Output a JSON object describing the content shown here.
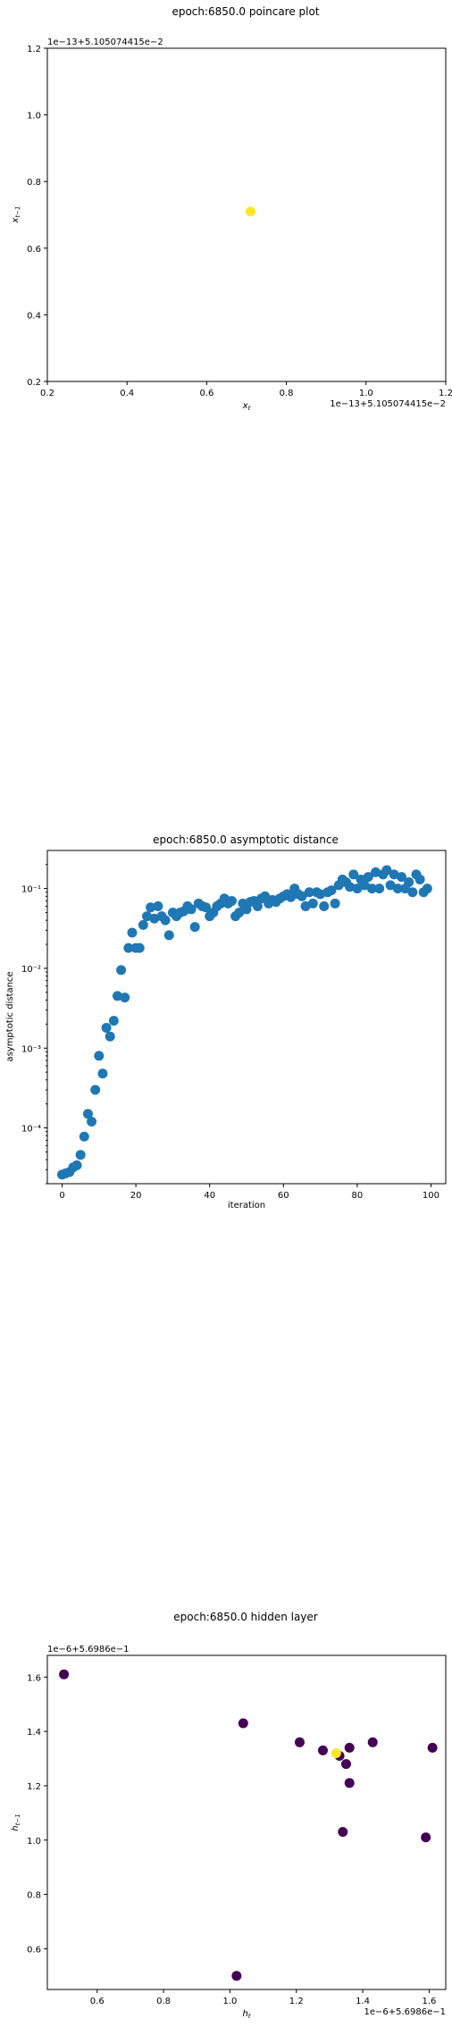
{
  "chart_data": [
    {
      "type": "scatter",
      "title": "epoch:6850.0 poincare plot",
      "xlabel": "x_t",
      "ylabel": "x_{t-1}",
      "x_offset_text": "1e−13+5.105074415e−2",
      "y_offset_text": "1e−13+5.105074415e−2",
      "xlim": [
        0.2,
        1.2
      ],
      "ylim": [
        0.2,
        1.2
      ],
      "x_ticks": [
        "0.2",
        "0.4",
        "0.6",
        "0.8",
        "1.0",
        "1.2"
      ],
      "y_ticks": [
        "0.2",
        "0.4",
        "0.6",
        "0.8",
        "1.0",
        "1.2"
      ],
      "points": [
        {
          "x": 0.71,
          "y": 0.71,
          "color": "#fde725"
        }
      ],
      "grid": false
    },
    {
      "type": "scatter",
      "title": "epoch:6850.0 asymptotic distance",
      "xlabel": "iteration",
      "ylabel": "asymptotic distance",
      "yscale": "log",
      "xlim": [
        -4,
        104
      ],
      "ylim": [
        2e-05,
        0.3
      ],
      "x_ticks": [
        "0",
        "20",
        "40",
        "60",
        "80",
        "100"
      ],
      "y_ticks": [
        "10⁻⁴",
        "10⁻³",
        "10⁻²",
        "10⁻¹"
      ],
      "color": "#1f77b4",
      "x": [
        0,
        1,
        2,
        3,
        4,
        5,
        6,
        7,
        8,
        9,
        10,
        11,
        12,
        13,
        14,
        15,
        16,
        17,
        18,
        19,
        20,
        21,
        22,
        23,
        24,
        25,
        26,
        27,
        28,
        29,
        30,
        31,
        32,
        33,
        34,
        35,
        36,
        37,
        38,
        39,
        40,
        41,
        42,
        43,
        44,
        45,
        46,
        47,
        48,
        49,
        50,
        51,
        52,
        53,
        54,
        55,
        56,
        57,
        58,
        59,
        60,
        61,
        62,
        63,
        64,
        65,
        66,
        67,
        68,
        69,
        70,
        71,
        72,
        73,
        74,
        75,
        76,
        77,
        78,
        79,
        80,
        81,
        82,
        83,
        84,
        85,
        86,
        87,
        88,
        89,
        90,
        91,
        92,
        93,
        94,
        95,
        96,
        97,
        98,
        99
      ],
      "y": [
        2.6e-05,
        2.7e-05,
        2.8e-05,
        3.2e-05,
        3.4e-05,
        4.6e-05,
        7.8e-05,
        0.00015,
        0.00012,
        0.0003,
        0.0008,
        0.00048,
        0.0018,
        0.0014,
        0.0022,
        0.0045,
        0.0095,
        0.0043,
        0.018,
        0.028,
        0.018,
        0.018,
        0.035,
        0.045,
        0.058,
        0.042,
        0.06,
        0.045,
        0.04,
        0.026,
        0.05,
        0.045,
        0.05,
        0.052,
        0.06,
        0.055,
        0.033,
        0.065,
        0.06,
        0.058,
        0.045,
        0.05,
        0.06,
        0.065,
        0.075,
        0.065,
        0.07,
        0.045,
        0.05,
        0.065,
        0.055,
        0.068,
        0.07,
        0.06,
        0.075,
        0.08,
        0.065,
        0.072,
        0.068,
        0.075,
        0.08,
        0.085,
        0.078,
        0.1,
        0.085,
        0.08,
        0.06,
        0.09,
        0.065,
        0.09,
        0.085,
        0.06,
        0.09,
        0.095,
        0.065,
        0.11,
        0.13,
        0.12,
        0.105,
        0.15,
        0.1,
        0.13,
        0.11,
        0.14,
        0.1,
        0.16,
        0.1,
        0.15,
        0.17,
        0.11,
        0.15,
        0.1,
        0.14,
        0.1,
        0.12,
        0.09,
        0.15,
        0.13,
        0.09,
        0.1
      ],
      "grid": false
    },
    {
      "type": "scatter",
      "title": "epoch:6850.0 hidden layer",
      "xlabel": "h_t",
      "ylabel": "h_{t-1}",
      "x_offset_text": "1e−6+5.6986e−1",
      "y_offset_text": "1e−6+5.6986e−1",
      "xlim": [
        0.45,
        1.65
      ],
      "ylim": [
        0.45,
        1.68
      ],
      "x_ticks": [
        "0.6",
        "0.8",
        "1.0",
        "1.2",
        "1.4",
        "1.6"
      ],
      "y_ticks": [
        "0.6",
        "0.8",
        "1.0",
        "1.2",
        "1.4",
        "1.6"
      ],
      "points": [
        {
          "x": 0.5,
          "y": 1.61,
          "color": "#440154"
        },
        {
          "x": 1.04,
          "y": 1.43,
          "color": "#440154"
        },
        {
          "x": 1.21,
          "y": 1.36,
          "color": "#440154"
        },
        {
          "x": 1.28,
          "y": 1.33,
          "color": "#440154"
        },
        {
          "x": 1.33,
          "y": 1.31,
          "color": "#440154"
        },
        {
          "x": 1.35,
          "y": 1.28,
          "color": "#440154"
        },
        {
          "x": 1.36,
          "y": 1.34,
          "color": "#440154"
        },
        {
          "x": 1.36,
          "y": 1.21,
          "color": "#440154"
        },
        {
          "x": 1.43,
          "y": 1.36,
          "color": "#440154"
        },
        {
          "x": 1.61,
          "y": 1.34,
          "color": "#440154"
        },
        {
          "x": 1.34,
          "y": 1.03,
          "color": "#440154"
        },
        {
          "x": 1.59,
          "y": 1.01,
          "color": "#440154"
        },
        {
          "x": 1.02,
          "y": 0.5,
          "color": "#440154"
        },
        {
          "x": 1.32,
          "y": 1.32,
          "color": "#fde725"
        }
      ],
      "grid": false
    }
  ]
}
